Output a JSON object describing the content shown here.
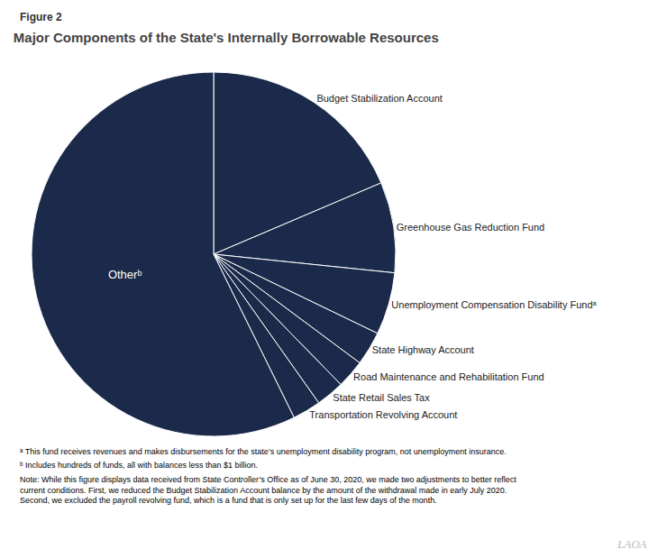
{
  "chart_data": {
    "type": "pie",
    "title": "Major Components of the State's Internally Borrowable Resources",
    "categories": [
      "Budget Stabilization Account",
      "Greenhouse Gas Reduction Fund",
      "Unemployment Compensation Disability Fundᵃ",
      "State Highway Account",
      "Road Maintenance and Rehabilitation Fund",
      "State Retail Sales Tax",
      "Transportation Revolving Account",
      "Otherᵇ"
    ],
    "values": [
      18.5,
      8.0,
      5.5,
      3.0,
      2.5,
      2.5,
      2.5,
      57.0
    ],
    "color": "#1B2A4A",
    "annotations": [
      "Figure 2",
      "ᵃ This fund receives revenues and makes disbursements for the state’s unemployment disability program, not unemployment insurance.",
      "ᵇ Includes hundreds of funds, all with balances less than $1 billion.",
      "Note: While this figure displays data received from State Controller’s Office as of June 30, 2020, we made two adjustments to better reflect current conditions. First, we reduced the Budget Stabilization Account balance by the amount of the withdrawal made in early July 2020. Second, we excluded the payroll revolving fund, which is a fund that is only set up for the last few days of the month.",
      "LAOA"
    ]
  }
}
